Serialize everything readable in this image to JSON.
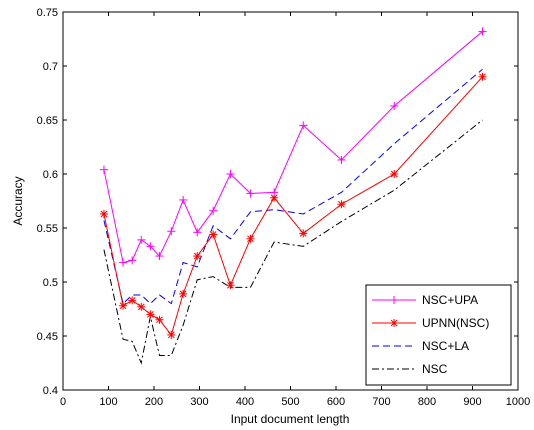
{
  "chart_data": {
    "type": "line",
    "title": "",
    "xlabel": "Input document length",
    "ylabel": "Accuracy",
    "xlim": [
      0,
      1000
    ],
    "ylim": [
      0.4,
      0.75
    ],
    "xticks": [
      0,
      100,
      200,
      300,
      400,
      500,
      600,
      700,
      800,
      900,
      1000
    ],
    "xtick_labels": [
      "0",
      "100",
      "200",
      "300",
      "400",
      "500",
      "600",
      "700",
      "800",
      "900",
      "1000"
    ],
    "yticks": [
      0.4,
      0.45,
      0.5,
      0.55,
      0.6,
      0.65,
      0.7,
      0.75
    ],
    "ytick_labels": [
      "0.4",
      "0.45",
      "0.5",
      "0.55",
      "0.6",
      "0.65",
      "0.7",
      "0.75"
    ],
    "grid": false,
    "legend_position": "bottom-right",
    "x": [
      90,
      132,
      152,
      172,
      192,
      212,
      238,
      264,
      295,
      330,
      368,
      412,
      464,
      528,
      612,
      728,
      922
    ],
    "series": [
      {
        "name": "NSC+UPA",
        "color": "#ff00ff",
        "line_style": "solid",
        "marker": "plus",
        "values": [
          0.604,
          0.518,
          0.52,
          0.539,
          0.533,
          0.524,
          0.547,
          0.576,
          0.546,
          0.566,
          0.6,
          0.582,
          0.583,
          0.645,
          0.613,
          0.663,
          0.732
        ]
      },
      {
        "name": "UPNN(NSC)",
        "color": "#ff0000",
        "line_style": "solid",
        "marker": "asterisk",
        "values": [
          0.563,
          0.478,
          0.483,
          0.477,
          0.47,
          0.465,
          0.451,
          0.489,
          0.524,
          0.544,
          0.497,
          0.54,
          0.578,
          0.545,
          0.572,
          0.6,
          0.69
        ]
      },
      {
        "name": "NSC+LA",
        "color": "#0000ff",
        "line_style": "dashed",
        "marker": "none",
        "values": [
          0.557,
          0.48,
          0.488,
          0.488,
          0.48,
          0.488,
          0.48,
          0.518,
          0.514,
          0.552,
          0.54,
          0.565,
          0.567,
          0.563,
          0.583,
          0.628,
          0.697
        ]
      },
      {
        "name": "NSC",
        "color": "#000000",
        "line_style": "dashdot",
        "marker": "none",
        "values": [
          0.53,
          0.447,
          0.445,
          0.425,
          0.468,
          0.432,
          0.432,
          0.46,
          0.502,
          0.505,
          0.495,
          0.495,
          0.537,
          0.533,
          0.556,
          0.585,
          0.65
        ]
      }
    ]
  }
}
